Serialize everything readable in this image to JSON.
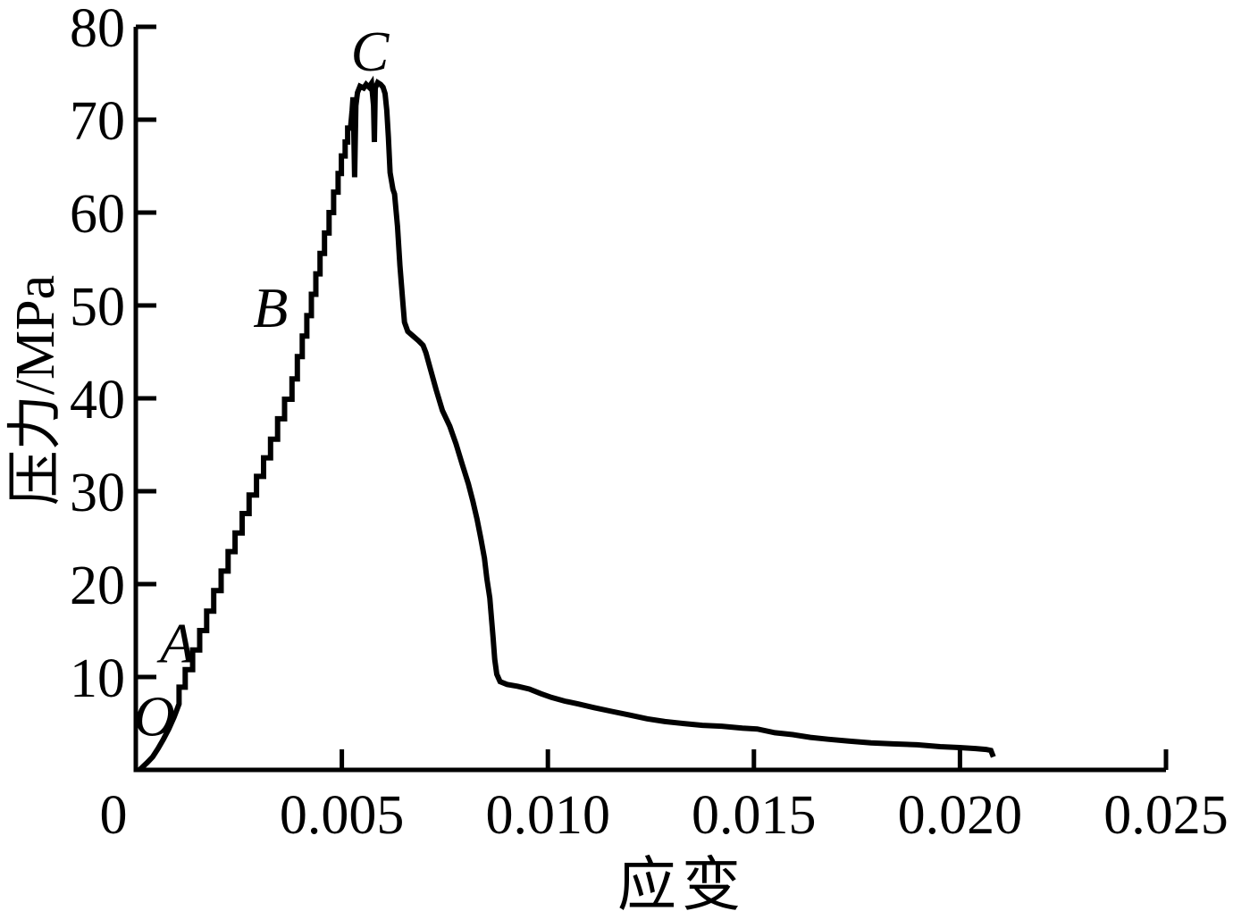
{
  "figure": {
    "background_color": "#ffffff",
    "ink_color": "#000000"
  },
  "chart_data": {
    "type": "line",
    "title": "",
    "xlabel": "应变",
    "ylabel": "压力/MPa",
    "xlim": [
      0,
      0.025
    ],
    "ylim": [
      0,
      80
    ],
    "grid": false,
    "legend": null,
    "xticks": [
      {
        "value": 0,
        "label": "0"
      },
      {
        "value": 0.005,
        "label": "0.005"
      },
      {
        "value": 0.01,
        "label": "0.010"
      },
      {
        "value": 0.015,
        "label": "0.015"
      },
      {
        "value": 0.02,
        "label": "0.020"
      },
      {
        "value": 0.025,
        "label": "0.025"
      }
    ],
    "yticks": [
      {
        "value": 10,
        "label": "10"
      },
      {
        "value": 20,
        "label": "20"
      },
      {
        "value": 30,
        "label": "30"
      },
      {
        "value": 40,
        "label": "40"
      },
      {
        "value": 50,
        "label": "50"
      },
      {
        "value": 60,
        "label": "60"
      },
      {
        "value": 70,
        "label": "70"
      },
      {
        "value": 80,
        "label": "80"
      }
    ],
    "annotations": [
      {
        "label": "O",
        "x": 0.00045,
        "y": 5.8
      },
      {
        "label": "A",
        "x": 0.00101,
        "y": 13.7
      },
      {
        "label": "B",
        "x": 0.00327,
        "y": 49.8
      },
      {
        "label": "C",
        "x": 0.00568,
        "y": 77.4
      }
    ],
    "series": [
      {
        "color": "#000000",
        "segments": [
          {
            "mode": "line",
            "points": [
              [
                0.0001,
                0.05
              ],
              [
                0.00028,
                0.8
              ],
              [
                0.00041,
                1.4
              ],
              [
                0.00054,
                2.3
              ],
              [
                0.00067,
                3.3
              ],
              [
                0.0008,
                4.4
              ],
              [
                0.00093,
                5.7
              ],
              [
                0.00105,
                7.1
              ]
            ]
          },
          {
            "mode": "steps",
            "points": [
              [
                0.0012,
                8.9
              ],
              [
                0.00138,
                10.8
              ],
              [
                0.00155,
                12.9
              ],
              [
                0.00172,
                15
              ],
              [
                0.00189,
                17.1
              ],
              [
                0.00207,
                19.3
              ],
              [
                0.00224,
                21.4
              ],
              [
                0.00241,
                23.5
              ],
              [
                0.00258,
                25.5
              ],
              [
                0.00275,
                27.6
              ],
              [
                0.00293,
                29.6
              ],
              [
                0.0031,
                31.6
              ],
              [
                0.00327,
                33.6
              ],
              [
                0.00344,
                35.6
              ],
              [
                0.00361,
                37.8
              ],
              [
                0.00379,
                39.9
              ],
              [
                0.00392,
                42.1
              ],
              [
                0.00404,
                44.5
              ],
              [
                0.00415,
                46.7
              ],
              [
                0.00426,
                48.9
              ],
              [
                0.00437,
                51.2
              ],
              [
                0.00447,
                53.4
              ],
              [
                0.00458,
                55.6
              ],
              [
                0.00469,
                57.8
              ],
              [
                0.0048,
                60
              ],
              [
                0.00491,
                62.2
              ],
              [
                0.00499,
                64.2
              ],
              [
                0.00508,
                66.1
              ],
              [
                0.00514,
                67.6
              ],
              [
                0.00521,
                69.1
              ]
            ]
          },
          {
            "mode": "line",
            "points": [
              [
                0.00525,
                71
              ],
              [
                0.00527,
                72.4
              ],
              [
                0.00529,
                68.6
              ],
              [
                0.00531,
                63.8
              ],
              [
                0.00534,
                71.5
              ],
              [
                0.00538,
                72.9
              ],
              [
                0.00544,
                73.6
              ],
              [
                0.00553,
                73.4
              ],
              [
                0.00559,
                73.8
              ],
              [
                0.00566,
                73.5
              ],
              [
                0.00572,
                73.9
              ],
              [
                0.00577,
                71.5
              ],
              [
                0.00579,
                67.6
              ],
              [
                0.00581,
                73.4
              ],
              [
                0.00587,
                74
              ],
              [
                0.00594,
                73.8
              ],
              [
                0.006,
                73.5
              ],
              [
                0.00605,
                72.8
              ],
              [
                0.00609,
                71
              ],
              [
                0.00613,
                68.1
              ],
              [
                0.00617,
                64.3
              ],
              [
                0.00624,
                62.5
              ],
              [
                0.00628,
                62
              ],
              [
                0.00635,
                58.5
              ],
              [
                0.00641,
                54.3
              ],
              [
                0.00648,
                50.3
              ],
              [
                0.00652,
                48.2
              ],
              [
                0.0066,
                47.2
              ],
              [
                0.00673,
                46.7
              ],
              [
                0.00686,
                46.2
              ],
              [
                0.00697,
                45.7
              ],
              [
                0.00704,
                44.9
              ],
              [
                0.00714,
                43.3
              ],
              [
                0.00729,
                40.9
              ],
              [
                0.00744,
                38.7
              ],
              [
                0.00762,
                37
              ],
              [
                0.00777,
                35.1
              ],
              [
                0.00792,
                32.9
              ],
              [
                0.00807,
                30.8
              ],
              [
                0.00818,
                28.9
              ],
              [
                0.00828,
                27
              ],
              [
                0.00837,
                25
              ],
              [
                0.00846,
                22.8
              ],
              [
                0.00852,
                20.6
              ],
              [
                0.00859,
                18.5
              ],
              [
                0.00863,
                16.4
              ],
              [
                0.00867,
                14.2
              ],
              [
                0.00871,
                11.9
              ],
              [
                0.00876,
                10.3
              ],
              [
                0.00884,
                9.5
              ],
              [
                0.00901,
                9.2
              ],
              [
                0.00927,
                9
              ],
              [
                0.00955,
                8.7
              ],
              [
                0.00983,
                8.2
              ],
              [
                0.01009,
                7.8
              ],
              [
                0.01041,
                7.4
              ],
              [
                0.01074,
                7.1
              ],
              [
                0.01112,
                6.7
              ],
              [
                0.01155,
                6.3
              ],
              [
                0.01198,
                5.9
              ],
              [
                0.01241,
                5.5
              ],
              [
                0.01284,
                5.2
              ],
              [
                0.01327,
                5
              ],
              [
                0.01375,
                4.8
              ],
              [
                0.01422,
                4.7
              ],
              [
                0.01472,
                4.5
              ],
              [
                0.01508,
                4.4
              ],
              [
                0.01551,
                4
              ],
              [
                0.01594,
                3.8
              ],
              [
                0.01637,
                3.5
              ],
              [
                0.0168,
                3.3
              ],
              [
                0.0173,
                3.1
              ],
              [
                0.01784,
                2.9
              ],
              [
                0.01838,
                2.8
              ],
              [
                0.01896,
                2.7
              ],
              [
                0.01952,
                2.5
              ],
              [
                0.01999,
                2.4
              ],
              [
                0.02038,
                2.3
              ],
              [
                0.02063,
                2.2
              ],
              [
                0.02075,
                2.1
              ],
              [
                0.02081,
                1.4
              ]
            ]
          }
        ]
      }
    ]
  }
}
